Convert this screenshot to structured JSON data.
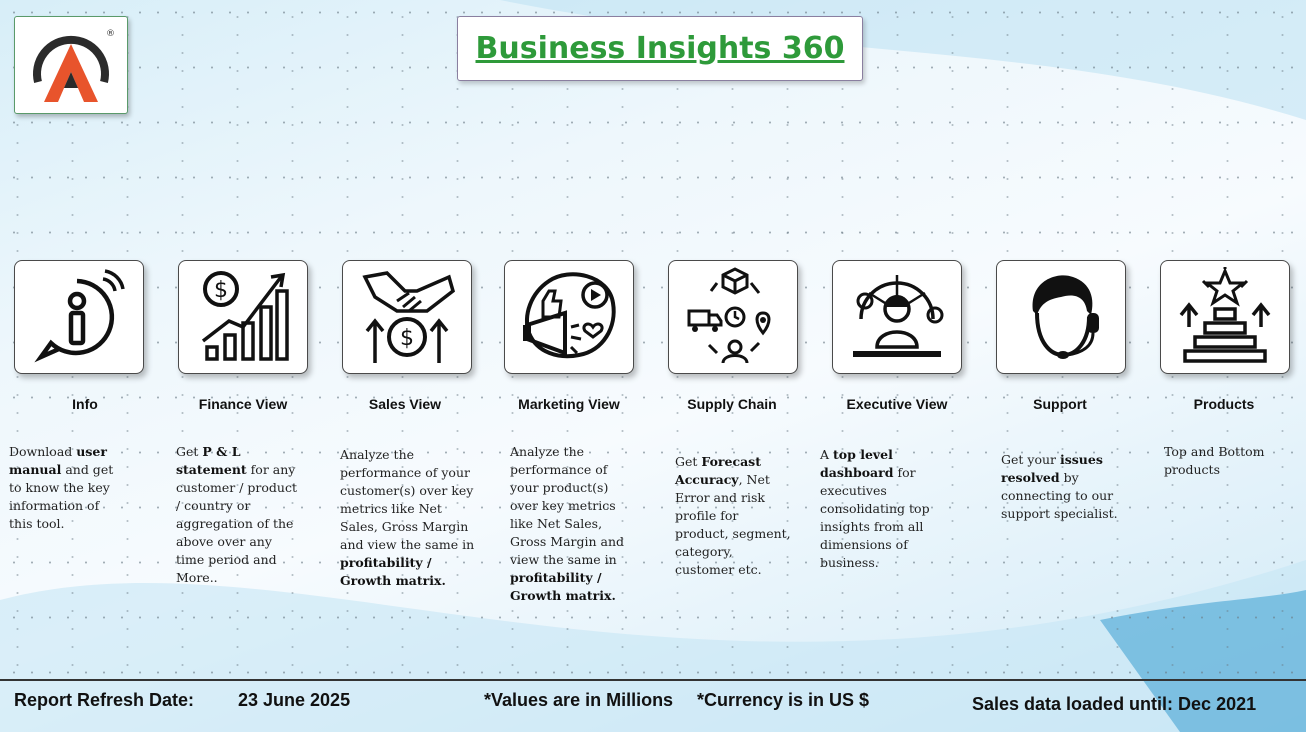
{
  "header": {
    "title": "Business Insights 360",
    "logo_icon": "atliq-logo-icon",
    "logo_mark": "®"
  },
  "tiles": [
    {
      "label": "Info",
      "icon": "info-icon"
    },
    {
      "label": "Finance View",
      "icon": "finance-growth-icon"
    },
    {
      "label": "Sales View",
      "icon": "handshake-money-icon"
    },
    {
      "label": "Marketing View",
      "icon": "marketing-megaphone-icon"
    },
    {
      "label": "Supply Chain",
      "icon": "supply-chain-cycle-icon"
    },
    {
      "label": "Executive View",
      "icon": "executive-person-icon"
    },
    {
      "label": "Support",
      "icon": "support-headset-icon"
    },
    {
      "label": "Products",
      "icon": "products-podium-icon"
    }
  ],
  "descriptions": {
    "info": [
      "Download ",
      "user manual",
      " and get to know the key information of this tool."
    ],
    "finance": [
      "Get ",
      "P & L statement",
      " for any customer / product / country or aggregation of the above over any time period and More.."
    ],
    "sales": [
      "Analyze the performance of your customer(s) over key metrics like Net Sales, Gross Margin and view the same in ",
      "profitability / Growth matrix."
    ],
    "marketing": [
      "Analyze the performance of your product(s) over key metrics like Net Sales, Gross Margin and view the same in ",
      "profitability / Growth matrix."
    ],
    "supply": [
      "Get ",
      "Forecast Accuracy",
      ", Net Error and risk profile for product, segment, category, customer etc."
    ],
    "executive": [
      "A ",
      "top level dashboard",
      " for executives consolidating top insights from all dimensions of business."
    ],
    "support": [
      "Get your ",
      "issues resolved",
      " by connecting to our support specialist."
    ],
    "products": [
      "Top and Bottom products"
    ]
  },
  "footer": {
    "refresh_label": "Report Refresh Date:",
    "refresh_date": "23 June 2025",
    "values_note": "*Values are in Millions",
    "currency_note": "*Currency is in US $",
    "loaded_until": "Sales data loaded until: Dec 2021"
  },
  "colors": {
    "title_green": "#2e9a3a",
    "logo_orange": "#e8542c",
    "logo_dark": "#2b2b2b"
  }
}
